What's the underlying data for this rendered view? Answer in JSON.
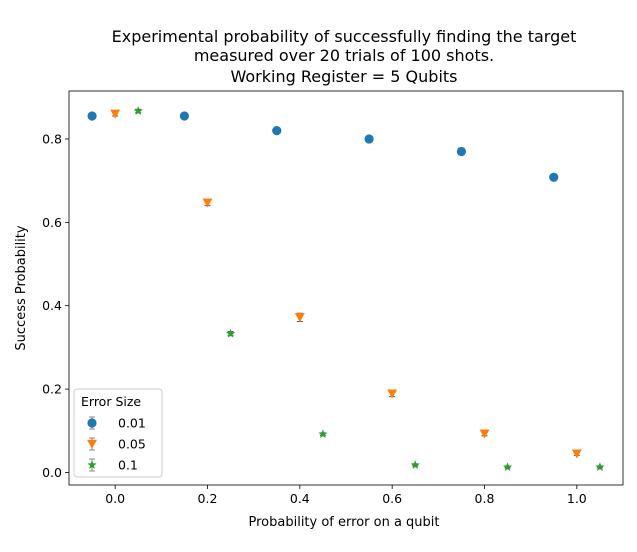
{
  "chart_data": {
    "type": "scatter",
    "title": [
      "Experimental probability of successfully finding the target",
      "measured over 20 trials of 100 shots.",
      "Working Register = 5 Qubits"
    ],
    "xlabel": "Probability of error on a qubit",
    "ylabel": "Success Probability",
    "xlim": [
      -0.1,
      1.1
    ],
    "ylim": [
      -0.03,
      0.915
    ],
    "xticks": [
      0.0,
      0.2,
      0.4,
      0.6,
      0.8,
      1.0
    ],
    "xtick_labels": [
      "0.0",
      "0.2",
      "0.4",
      "0.6",
      "0.8",
      "1.0"
    ],
    "yticks": [
      0.0,
      0.2,
      0.4,
      0.6,
      0.8
    ],
    "ytick_labels": [
      "0.0",
      "0.2",
      "0.4",
      "0.6",
      "0.8"
    ],
    "grid": false,
    "legend": {
      "title": "Error Size",
      "placement": "lower-left"
    },
    "series": [
      {
        "name": "0.01",
        "color": "#1f77b4",
        "marker": "circle",
        "x": [
          -0.05,
          0.15,
          0.35,
          0.55,
          0.75,
          0.95
        ],
        "y": [
          0.855,
          0.855,
          0.82,
          0.8,
          0.77,
          0.708
        ],
        "err": [
          0.004,
          0.005,
          0.005,
          0.005,
          0.008,
          0.006
        ]
      },
      {
        "name": "0.05",
        "color": "#ff7f0e",
        "marker": "triangle-down",
        "x": [
          0.0,
          0.2,
          0.4,
          0.6,
          0.8,
          1.0
        ],
        "y": [
          0.86,
          0.647,
          0.372,
          0.189,
          0.093,
          0.045
        ],
        "err": [
          0.005,
          0.007,
          0.01,
          0.007,
          0.005,
          0.004
        ]
      },
      {
        "name": "0.1",
        "color": "#2ca02c",
        "marker": "star",
        "x": [
          0.05,
          0.25,
          0.45,
          0.65,
          0.85,
          1.05
        ],
        "y": [
          0.867,
          0.333,
          0.092,
          0.018,
          0.013,
          0.013
        ],
        "err": [
          0.004,
          0.005,
          0.003,
          0.002,
          0.002,
          0.002
        ]
      }
    ]
  }
}
